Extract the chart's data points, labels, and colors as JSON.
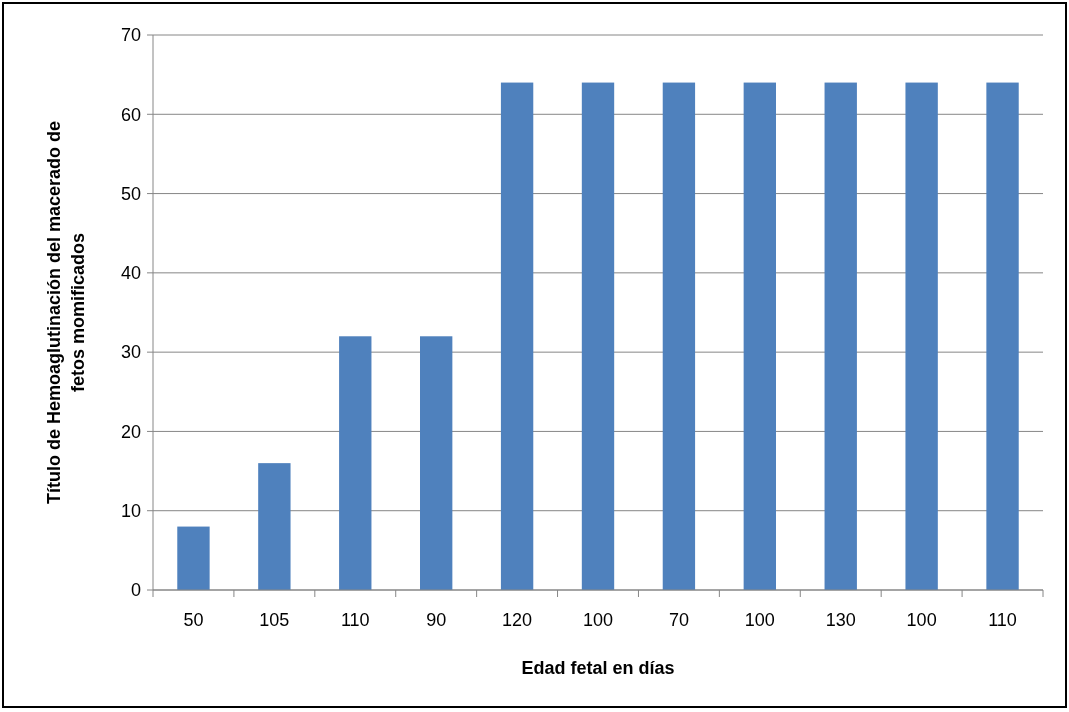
{
  "chart_data": {
    "type": "bar",
    "xlabel": "Edad fetal en días",
    "ylabel": "Título de Hemoaglutinación del macerado de fetos momificados",
    "categories": [
      "50",
      "105",
      "110",
      "90",
      "120",
      "100",
      "70",
      "100",
      "130",
      "100",
      "110"
    ],
    "values": [
      8,
      16,
      32,
      32,
      64,
      64,
      64,
      64,
      64,
      64,
      64
    ],
    "color": "#4f81bd",
    "ylim": [
      0,
      70
    ],
    "yticks": [
      0,
      10,
      20,
      30,
      40,
      50,
      60,
      70
    ],
    "grid": "y"
  }
}
